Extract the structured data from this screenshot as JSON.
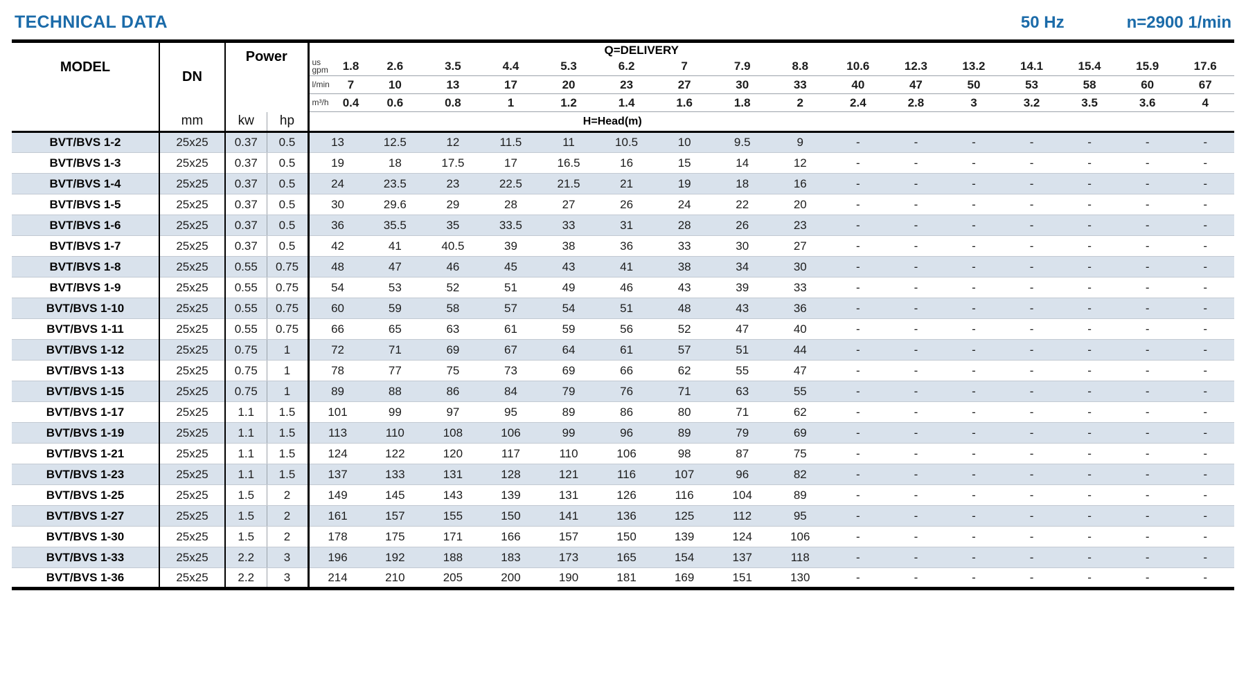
{
  "page": {
    "title": "TECHNICAL DATA",
    "frequency": "50 Hz",
    "speed": "n=2900 1/min"
  },
  "colors": {
    "accent_blue": "#1b6ba9",
    "row_stripe": "#d9e2ec"
  },
  "table": {
    "headers": {
      "model": "MODEL",
      "dn": "DN",
      "dn_unit": "mm",
      "power": "Power",
      "power_units": [
        "kw",
        "hp"
      ],
      "delivery": "Q=DELIVERY",
      "head": "H=Head(m)",
      "flow_units": [
        {
          "label": "us gpm",
          "values": [
            "1.8",
            "2.6",
            "3.5",
            "4.4",
            "5.3",
            "6.2",
            "7",
            "7.9",
            "8.8",
            "10.6",
            "12.3",
            "13.2",
            "14.1",
            "15.4",
            "15.9",
            "17.6"
          ]
        },
        {
          "label": "l/min",
          "values": [
            "7",
            "10",
            "13",
            "17",
            "20",
            "23",
            "27",
            "30",
            "33",
            "40",
            "47",
            "50",
            "53",
            "58",
            "60",
            "67"
          ]
        },
        {
          "label": "m³/h",
          "values": [
            "0.4",
            "0.6",
            "0.8",
            "1",
            "1.2",
            "1.4",
            "1.6",
            "1.8",
            "2",
            "2.4",
            "2.8",
            "3",
            "3.2",
            "3.5",
            "3.6",
            "4"
          ]
        }
      ]
    },
    "rows": [
      {
        "model": "BVT/BVS 1-2",
        "dn": "25x25",
        "kw": "0.37",
        "hp": "0.5",
        "head": [
          "13",
          "12.5",
          "12",
          "11.5",
          "11",
          "10.5",
          "10",
          "9.5",
          "9",
          "-",
          "-",
          "-",
          "-",
          "-",
          "-",
          "-"
        ]
      },
      {
        "model": "BVT/BVS 1-3",
        "dn": "25x25",
        "kw": "0.37",
        "hp": "0.5",
        "head": [
          "19",
          "18",
          "17.5",
          "17",
          "16.5",
          "16",
          "15",
          "14",
          "12",
          "-",
          "-",
          "-",
          "-",
          "-",
          "-",
          "-"
        ]
      },
      {
        "model": "BVT/BVS 1-4",
        "dn": "25x25",
        "kw": "0.37",
        "hp": "0.5",
        "head": [
          "24",
          "23.5",
          "23",
          "22.5",
          "21.5",
          "21",
          "19",
          "18",
          "16",
          "-",
          "-",
          "-",
          "-",
          "-",
          "-",
          "-"
        ]
      },
      {
        "model": "BVT/BVS 1-5",
        "dn": "25x25",
        "kw": "0.37",
        "hp": "0.5",
        "head": [
          "30",
          "29.6",
          "29",
          "28",
          "27",
          "26",
          "24",
          "22",
          "20",
          "-",
          "-",
          "-",
          "-",
          "-",
          "-",
          "-"
        ]
      },
      {
        "model": "BVT/BVS 1-6",
        "dn": "25x25",
        "kw": "0.37",
        "hp": "0.5",
        "head": [
          "36",
          "35.5",
          "35",
          "33.5",
          "33",
          "31",
          "28",
          "26",
          "23",
          "-",
          "-",
          "-",
          "-",
          "-",
          "-",
          "-"
        ]
      },
      {
        "model": "BVT/BVS 1-7",
        "dn": "25x25",
        "kw": "0.37",
        "hp": "0.5",
        "head": [
          "42",
          "41",
          "40.5",
          "39",
          "38",
          "36",
          "33",
          "30",
          "27",
          "-",
          "-",
          "-",
          "-",
          "-",
          "-",
          "-"
        ]
      },
      {
        "model": "BVT/BVS 1-8",
        "dn": "25x25",
        "kw": "0.55",
        "hp": "0.75",
        "head": [
          "48",
          "47",
          "46",
          "45",
          "43",
          "41",
          "38",
          "34",
          "30",
          "-",
          "-",
          "-",
          "-",
          "-",
          "-",
          "-"
        ]
      },
      {
        "model": "BVT/BVS 1-9",
        "dn": "25x25",
        "kw": "0.55",
        "hp": "0.75",
        "head": [
          "54",
          "53",
          "52",
          "51",
          "49",
          "46",
          "43",
          "39",
          "33",
          "-",
          "-",
          "-",
          "-",
          "-",
          "-",
          "-"
        ]
      },
      {
        "model": "BVT/BVS 1-10",
        "dn": "25x25",
        "kw": "0.55",
        "hp": "0.75",
        "head": [
          "60",
          "59",
          "58",
          "57",
          "54",
          "51",
          "48",
          "43",
          "36",
          "-",
          "-",
          "-",
          "-",
          "-",
          "-",
          "-"
        ]
      },
      {
        "model": "BVT/BVS 1-11",
        "dn": "25x25",
        "kw": "0.55",
        "hp": "0.75",
        "head": [
          "66",
          "65",
          "63",
          "61",
          "59",
          "56",
          "52",
          "47",
          "40",
          "-",
          "-",
          "-",
          "-",
          "-",
          "-",
          "-"
        ]
      },
      {
        "model": "BVT/BVS 1-12",
        "dn": "25x25",
        "kw": "0.75",
        "hp": "1",
        "head": [
          "72",
          "71",
          "69",
          "67",
          "64",
          "61",
          "57",
          "51",
          "44",
          "-",
          "-",
          "-",
          "-",
          "-",
          "-",
          "-"
        ]
      },
      {
        "model": "BVT/BVS 1-13",
        "dn": "25x25",
        "kw": "0.75",
        "hp": "1",
        "head": [
          "78",
          "77",
          "75",
          "73",
          "69",
          "66",
          "62",
          "55",
          "47",
          "-",
          "-",
          "-",
          "-",
          "-",
          "-",
          "-"
        ]
      },
      {
        "model": "BVT/BVS 1-15",
        "dn": "25x25",
        "kw": "0.75",
        "hp": "1",
        "head": [
          "89",
          "88",
          "86",
          "84",
          "79",
          "76",
          "71",
          "63",
          "55",
          "-",
          "-",
          "-",
          "-",
          "-",
          "-",
          "-"
        ]
      },
      {
        "model": "BVT/BVS 1-17",
        "dn": "25x25",
        "kw": "1.1",
        "hp": "1.5",
        "head": [
          "101",
          "99",
          "97",
          "95",
          "89",
          "86",
          "80",
          "71",
          "62",
          "-",
          "-",
          "-",
          "-",
          "-",
          "-",
          "-"
        ]
      },
      {
        "model": "BVT/BVS 1-19",
        "dn": "25x25",
        "kw": "1.1",
        "hp": "1.5",
        "head": [
          "113",
          "110",
          "108",
          "106",
          "99",
          "96",
          "89",
          "79",
          "69",
          "-",
          "-",
          "-",
          "-",
          "-",
          "-",
          "-"
        ]
      },
      {
        "model": "BVT/BVS 1-21",
        "dn": "25x25",
        "kw": "1.1",
        "hp": "1.5",
        "head": [
          "124",
          "122",
          "120",
          "117",
          "110",
          "106",
          "98",
          "87",
          "75",
          "-",
          "-",
          "-",
          "-",
          "-",
          "-",
          "-"
        ]
      },
      {
        "model": "BVT/BVS 1-23",
        "dn": "25x25",
        "kw": "1.1",
        "hp": "1.5",
        "head": [
          "137",
          "133",
          "131",
          "128",
          "121",
          "116",
          "107",
          "96",
          "82",
          "-",
          "-",
          "-",
          "-",
          "-",
          "-",
          "-"
        ]
      },
      {
        "model": "BVT/BVS 1-25",
        "dn": "25x25",
        "kw": "1.5",
        "hp": "2",
        "head": [
          "149",
          "145",
          "143",
          "139",
          "131",
          "126",
          "116",
          "104",
          "89",
          "-",
          "-",
          "-",
          "-",
          "-",
          "-",
          "-"
        ]
      },
      {
        "model": "BVT/BVS 1-27",
        "dn": "25x25",
        "kw": "1.5",
        "hp": "2",
        "head": [
          "161",
          "157",
          "155",
          "150",
          "141",
          "136",
          "125",
          "112",
          "95",
          "-",
          "-",
          "-",
          "-",
          "-",
          "-",
          "-"
        ]
      },
      {
        "model": "BVT/BVS 1-30",
        "dn": "25x25",
        "kw": "1.5",
        "hp": "2",
        "head": [
          "178",
          "175",
          "171",
          "166",
          "157",
          "150",
          "139",
          "124",
          "106",
          "-",
          "-",
          "-",
          "-",
          "-",
          "-",
          "-"
        ]
      },
      {
        "model": "BVT/BVS 1-33",
        "dn": "25x25",
        "kw": "2.2",
        "hp": "3",
        "head": [
          "196",
          "192",
          "188",
          "183",
          "173",
          "165",
          "154",
          "137",
          "118",
          "-",
          "-",
          "-",
          "-",
          "-",
          "-",
          "-"
        ]
      },
      {
        "model": "BVT/BVS 1-36",
        "dn": "25x25",
        "kw": "2.2",
        "hp": "3",
        "head": [
          "214",
          "210",
          "205",
          "200",
          "190",
          "181",
          "169",
          "151",
          "130",
          "-",
          "-",
          "-",
          "-",
          "-",
          "-",
          "-"
        ]
      }
    ]
  }
}
